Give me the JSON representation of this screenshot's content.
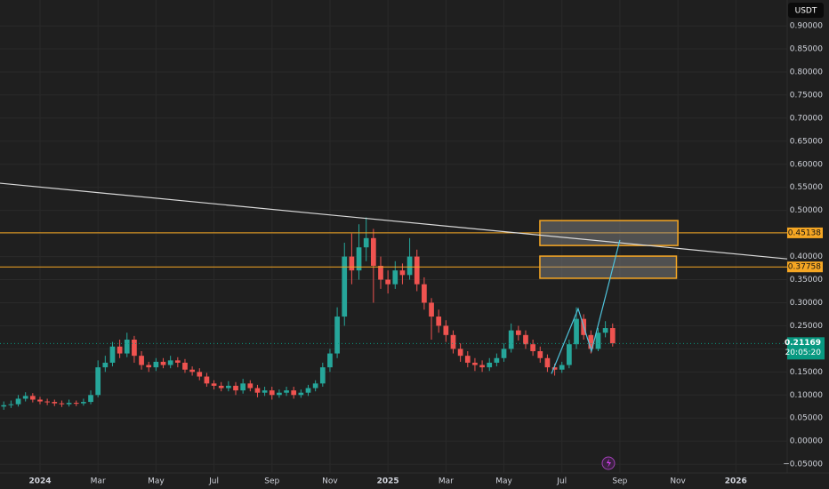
{
  "chart_data": {
    "type": "candlestick",
    "currency": "USDT",
    "up_color": "#26a69a",
    "down_color": "#ef5350",
    "grid": true,
    "xlim": [
      -1.38,
      25.77
    ],
    "xticks": [
      {
        "value": 0,
        "label": "2024"
      },
      {
        "value": 2,
        "label": "Mar"
      },
      {
        "value": 4,
        "label": "May"
      },
      {
        "value": 6,
        "label": "Jul"
      },
      {
        "value": 8,
        "label": "Sep"
      },
      {
        "value": 10,
        "label": "Nov"
      },
      {
        "value": 12,
        "label": "2025"
      },
      {
        "value": 14,
        "label": "Mar"
      },
      {
        "value": 16,
        "label": "May"
      },
      {
        "value": 18,
        "label": "Jul"
      },
      {
        "value": 20,
        "label": "Sep"
      },
      {
        "value": 22,
        "label": "Nov"
      },
      {
        "value": 24,
        "label": "2026"
      }
    ],
    "ylim": [
      -0.069,
      0.956
    ],
    "yticks": [
      {
        "value": -0.05,
        "label": "−0.05000"
      },
      {
        "value": 0,
        "label": "0.00000"
      },
      {
        "value": 0.05,
        "label": "0.05000"
      },
      {
        "value": 0.1,
        "label": "0.10000"
      },
      {
        "value": 0.15,
        "label": "0.15000"
      },
      {
        "value": 0.2,
        "label": "0.20000"
      },
      {
        "value": 0.25,
        "label": "0.25000"
      },
      {
        "value": 0.3,
        "label": "0.30000"
      },
      {
        "value": 0.35,
        "label": "0.35000"
      },
      {
        "value": 0.4,
        "label": "0.40000"
      },
      {
        "value": 0.45,
        "label": "0.45000"
      },
      {
        "value": 0.5,
        "label": "0.50000"
      },
      {
        "value": 0.55,
        "label": "0.55000"
      },
      {
        "value": 0.6,
        "label": "0.60000"
      },
      {
        "value": 0.65,
        "label": "0.65000"
      },
      {
        "value": 0.7,
        "label": "0.70000"
      },
      {
        "value": 0.75,
        "label": "0.75000"
      },
      {
        "value": 0.8,
        "label": "0.80000"
      },
      {
        "value": 0.85,
        "label": "0.85000"
      },
      {
        "value": 0.9,
        "label": "0.90000"
      }
    ],
    "candles": {
      "x": [
        -1.25,
        -1,
        -0.75,
        -0.5,
        -0.25,
        0,
        0.25,
        0.5,
        0.75,
        1,
        1.25,
        1.5,
        1.75,
        2,
        2.25,
        2.5,
        2.75,
        3,
        3.25,
        3.5,
        3.75,
        4,
        4.25,
        4.5,
        4.75,
        5,
        5.25,
        5.5,
        5.75,
        6,
        6.25,
        6.5,
        6.75,
        7,
        7.25,
        7.5,
        7.75,
        8,
        8.25,
        8.5,
        8.75,
        9,
        9.25,
        9.5,
        9.75,
        10,
        10.25,
        10.5,
        10.75,
        11,
        11.25,
        11.5,
        11.75,
        12,
        12.25,
        12.5,
        12.75,
        13,
        13.25,
        13.5,
        13.75,
        14,
        14.25,
        14.5,
        14.75,
        15,
        15.25,
        15.5,
        15.75,
        16,
        16.25,
        16.5,
        16.75,
        17,
        17.25,
        17.5,
        17.75,
        18,
        18.25,
        18.5,
        18.75,
        19,
        19.25,
        19.5,
        19.75
      ],
      "open": [
        0.075,
        0.078,
        0.08,
        0.092,
        0.098,
        0.09,
        0.086,
        0.085,
        0.082,
        0.08,
        0.083,
        0.082,
        0.085,
        0.1,
        0.16,
        0.17,
        0.205,
        0.19,
        0.22,
        0.185,
        0.165,
        0.16,
        0.172,
        0.165,
        0.175,
        0.17,
        0.155,
        0.15,
        0.14,
        0.125,
        0.12,
        0.115,
        0.12,
        0.11,
        0.125,
        0.115,
        0.105,
        0.11,
        0.1,
        0.105,
        0.11,
        0.1,
        0.105,
        0.115,
        0.125,
        0.16,
        0.19,
        0.27,
        0.4,
        0.37,
        0.42,
        0.44,
        0.38,
        0.35,
        0.34,
        0.37,
        0.36,
        0.4,
        0.34,
        0.3,
        0.27,
        0.25,
        0.23,
        0.2,
        0.185,
        0.17,
        0.165,
        0.16,
        0.17,
        0.18,
        0.2,
        0.24,
        0.23,
        0.21,
        0.195,
        0.18,
        0.16,
        0.155,
        0.165,
        0.21,
        0.265,
        0.23,
        0.2,
        0.235,
        0.245
      ],
      "high": [
        0.086,
        0.088,
        0.1,
        0.106,
        0.104,
        0.096,
        0.092,
        0.09,
        0.088,
        0.09,
        0.088,
        0.092,
        0.11,
        0.175,
        0.185,
        0.215,
        0.22,
        0.235,
        0.228,
        0.195,
        0.172,
        0.18,
        0.18,
        0.185,
        0.182,
        0.178,
        0.162,
        0.158,
        0.148,
        0.132,
        0.128,
        0.13,
        0.128,
        0.135,
        0.132,
        0.122,
        0.118,
        0.118,
        0.112,
        0.118,
        0.118,
        0.112,
        0.122,
        0.132,
        0.17,
        0.2,
        0.29,
        0.43,
        0.45,
        0.47,
        0.485,
        0.46,
        0.4,
        0.37,
        0.39,
        0.385,
        0.44,
        0.415,
        0.355,
        0.31,
        0.285,
        0.262,
        0.24,
        0.212,
        0.195,
        0.18,
        0.175,
        0.18,
        0.19,
        0.212,
        0.255,
        0.25,
        0.24,
        0.22,
        0.205,
        0.188,
        0.168,
        0.172,
        0.22,
        0.29,
        0.275,
        0.24,
        0.245,
        0.26,
        0.255
      ],
      "low": [
        0.068,
        0.072,
        0.075,
        0.086,
        0.084,
        0.08,
        0.078,
        0.076,
        0.074,
        0.075,
        0.076,
        0.077,
        0.08,
        0.095,
        0.15,
        0.162,
        0.18,
        0.182,
        0.17,
        0.155,
        0.15,
        0.152,
        0.158,
        0.158,
        0.16,
        0.148,
        0.142,
        0.132,
        0.118,
        0.112,
        0.108,
        0.108,
        0.1,
        0.103,
        0.108,
        0.095,
        0.098,
        0.09,
        0.094,
        0.098,
        0.092,
        0.094,
        0.098,
        0.108,
        0.118,
        0.15,
        0.18,
        0.25,
        0.34,
        0.35,
        0.39,
        0.3,
        0.33,
        0.32,
        0.33,
        0.34,
        0.35,
        0.325,
        0.285,
        0.22,
        0.235,
        0.215,
        0.19,
        0.172,
        0.16,
        0.152,
        0.15,
        0.152,
        0.162,
        0.172,
        0.192,
        0.218,
        0.2,
        0.185,
        0.17,
        0.15,
        0.142,
        0.148,
        0.158,
        0.2,
        0.22,
        0.19,
        0.195,
        0.225,
        0.205
      ],
      "close": [
        0.078,
        0.08,
        0.092,
        0.098,
        0.09,
        0.086,
        0.085,
        0.082,
        0.08,
        0.083,
        0.082,
        0.085,
        0.1,
        0.16,
        0.17,
        0.205,
        0.19,
        0.22,
        0.185,
        0.165,
        0.16,
        0.172,
        0.165,
        0.175,
        0.17,
        0.155,
        0.15,
        0.14,
        0.125,
        0.12,
        0.115,
        0.12,
        0.11,
        0.125,
        0.115,
        0.105,
        0.11,
        0.1,
        0.105,
        0.11,
        0.1,
        0.105,
        0.115,
        0.125,
        0.16,
        0.19,
        0.27,
        0.4,
        0.37,
        0.42,
        0.44,
        0.38,
        0.35,
        0.34,
        0.37,
        0.36,
        0.4,
        0.34,
        0.3,
        0.27,
        0.25,
        0.23,
        0.2,
        0.185,
        0.17,
        0.165,
        0.16,
        0.17,
        0.18,
        0.2,
        0.24,
        0.23,
        0.21,
        0.195,
        0.18,
        0.16,
        0.155,
        0.165,
        0.21,
        0.265,
        0.23,
        0.2,
        0.235,
        0.245,
        0.212
      ]
    },
    "hlines": [
      {
        "value": 0.45138,
        "color": "#f5a623"
      },
      {
        "value": 0.37758,
        "color": "#f5a623"
      }
    ],
    "boxes": [
      {
        "x": [
          17.24,
          22.0
        ],
        "y": [
          0.424,
          0.478
        ],
        "color": "#f5a623"
      },
      {
        "x": [
          17.24,
          21.95
        ],
        "y": [
          0.353,
          0.401
        ],
        "color": "#f5a623"
      }
    ],
    "trendline": {
      "x": [
        -1.38,
        25.77
      ],
      "y": [
        0.559,
        0.395
      ],
      "color": "#d9d9d9"
    },
    "projection": {
      "x": [
        17.64,
        18.56,
        19.02,
        20.0
      ],
      "y": [
        0.146,
        0.287,
        0.195,
        0.436
      ],
      "color": "#4fc3dc"
    },
    "last_price": {
      "value": 0.21169,
      "countdown": "20:05:20",
      "color": "#089981"
    }
  }
}
